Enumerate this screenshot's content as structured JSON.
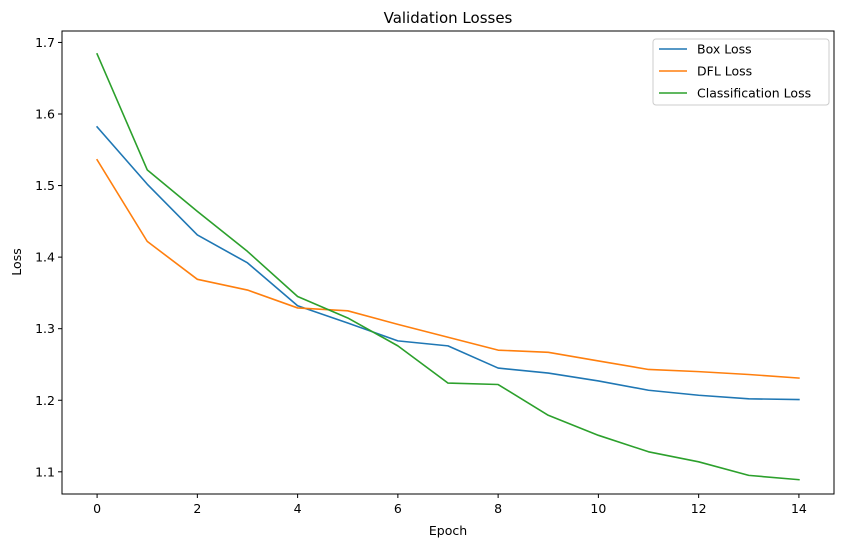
{
  "chart_data": {
    "type": "line",
    "title": "Validation Losses",
    "xlabel": "Epoch",
    "ylabel": "Loss",
    "xlim": [
      -0.7,
      14.7
    ],
    "ylim": [
      1.069,
      1.716
    ],
    "xticks": [
      0,
      2,
      4,
      6,
      8,
      10,
      12,
      14
    ],
    "yticks": [
      1.1,
      1.2,
      1.3,
      1.4,
      1.5,
      1.6,
      1.7
    ],
    "ytick_labels": [
      "1.1",
      "1.2",
      "1.3",
      "1.4",
      "1.5",
      "1.6",
      "1.7"
    ],
    "grid": false,
    "legend_position": "top-right",
    "x": [
      0,
      1,
      2,
      3,
      4,
      5,
      6,
      7,
      8,
      9,
      10,
      11,
      12,
      13,
      14
    ],
    "series": [
      {
        "name": "Box Loss",
        "color": "#1f77b4",
        "values": [
          1.582,
          1.502,
          1.431,
          1.392,
          1.332,
          1.308,
          1.283,
          1.276,
          1.245,
          1.238,
          1.227,
          1.214,
          1.207,
          1.202,
          1.201
        ]
      },
      {
        "name": "DFL Loss",
        "color": "#ff7f0e",
        "values": [
          1.536,
          1.422,
          1.369,
          1.354,
          1.329,
          1.325,
          1.306,
          1.288,
          1.27,
          1.267,
          1.255,
          1.243,
          1.24,
          1.236,
          1.231
        ]
      },
      {
        "name": "Classification Loss",
        "color": "#2ca02c",
        "values": [
          1.684,
          1.522,
          1.464,
          1.408,
          1.345,
          1.315,
          1.276,
          1.224,
          1.222,
          1.179,
          1.151,
          1.128,
          1.114,
          1.095,
          1.089
        ]
      }
    ]
  }
}
